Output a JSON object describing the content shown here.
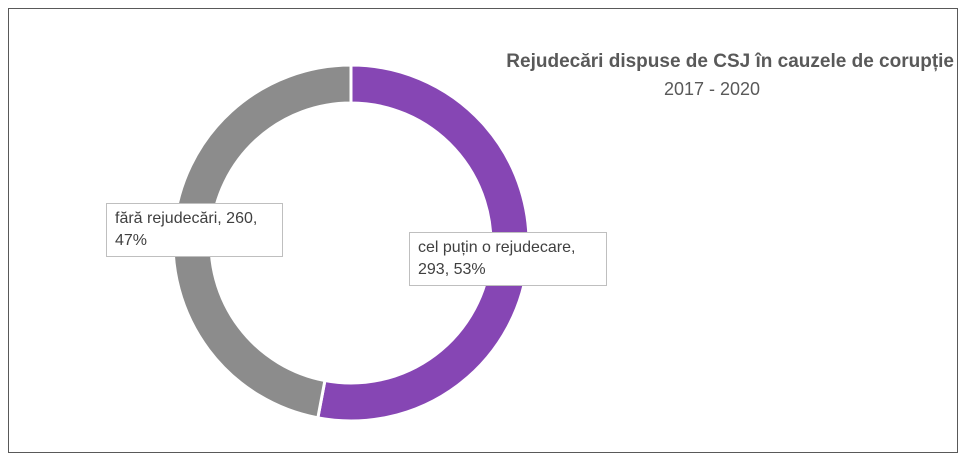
{
  "chart_data": {
    "type": "donut",
    "title": "Rejudecări dispuse de CSJ în cauzele de corupție",
    "subtitle": "2017 - 2020",
    "values": [
      293,
      260
    ],
    "value_labels": [
      "cel puțin o rejudecare, 293, 53%",
      "fără rejudecări, 260, 47%"
    ],
    "colors": [
      "#8646b4",
      "#8c8c8c"
    ]
  }
}
